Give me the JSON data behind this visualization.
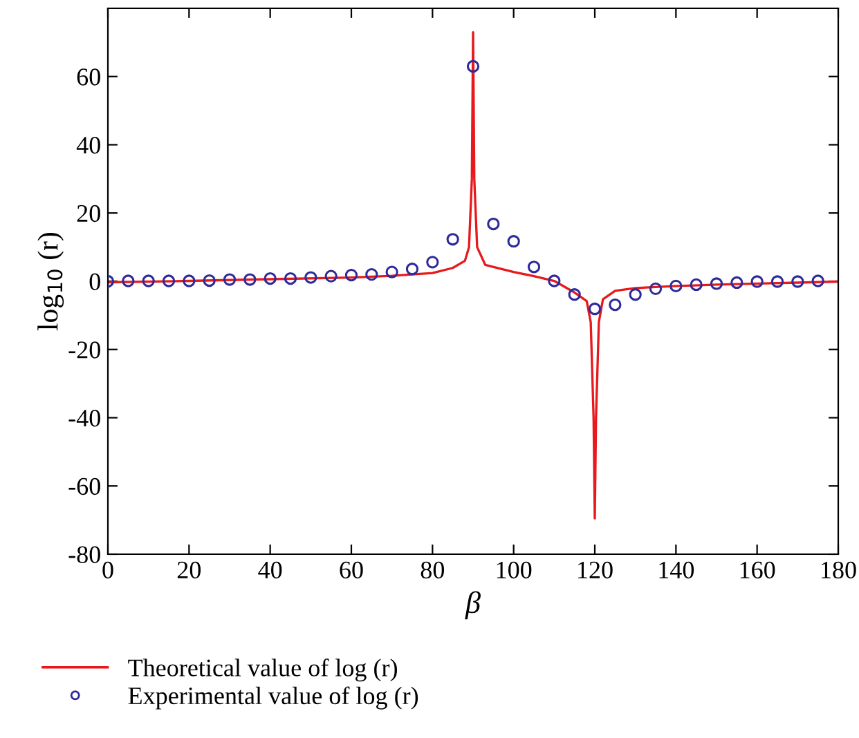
{
  "chart_data": {
    "type": "line",
    "xlabel": "β",
    "ylabel": "log$_{10}$ (r)",
    "xlim": [
      0,
      180
    ],
    "xticks": [
      0,
      20,
      40,
      60,
      80,
      100,
      120,
      140,
      160,
      180
    ],
    "ylim": [
      -80,
      80
    ],
    "yticks": [
      -80,
      -60,
      -40,
      -20,
      0,
      20,
      40,
      60
    ],
    "grid": false,
    "legend": "bottom left",
    "series": [
      {
        "name": "Theoretical value of log (r)",
        "color": "#e8191c",
        "marker": "none",
        "line_style": "solid",
        "x": [
          0,
          20,
          40,
          60,
          70,
          80,
          85,
          88,
          89,
          89.7,
          90,
          90.3,
          91,
          93,
          100,
          105,
          110,
          115,
          118,
          119,
          119.7,
          120,
          120.3,
          121,
          122,
          125,
          130,
          140,
          150,
          160,
          170,
          180
        ],
        "values": [
          -0.3,
          0.1,
          0.6,
          1.1,
          1.6,
          2.4,
          3.9,
          6,
          10,
          30,
          73,
          30,
          10,
          4.8,
          2.7,
          1.5,
          0.1,
          -3.3,
          -5.8,
          -12,
          -40,
          -69.5,
          -40,
          -12,
          -5.3,
          -2.8,
          -2,
          -1.4,
          -1,
          -0.7,
          -0.4,
          -0.1
        ]
      },
      {
        "name": "Experimental value of log (r)",
        "type": "scatter",
        "color": "#2e2a9a",
        "marker": "circle",
        "x": [
          0,
          5,
          10,
          15,
          20,
          25,
          30,
          35,
          40,
          45,
          50,
          55,
          60,
          65,
          70,
          75,
          80,
          85,
          90,
          95,
          100,
          105,
          110,
          115,
          120,
          125,
          130,
          135,
          140,
          145,
          150,
          155,
          160,
          165,
          170,
          175
        ],
        "values": [
          0,
          0.1,
          0.1,
          0.1,
          0.1,
          0.2,
          0.5,
          0.5,
          0.8,
          0.8,
          1.1,
          1.5,
          1.8,
          2.0,
          2.7,
          3.6,
          5.6,
          12.3,
          63,
          16.8,
          11.7,
          4.2,
          0.1,
          -3.9,
          -8.1,
          -6.9,
          -3.9,
          -2.2,
          -1.4,
          -1.0,
          -0.7,
          -0.4,
          -0.1,
          -0.1,
          -0.1,
          0.1
        ]
      }
    ]
  }
}
